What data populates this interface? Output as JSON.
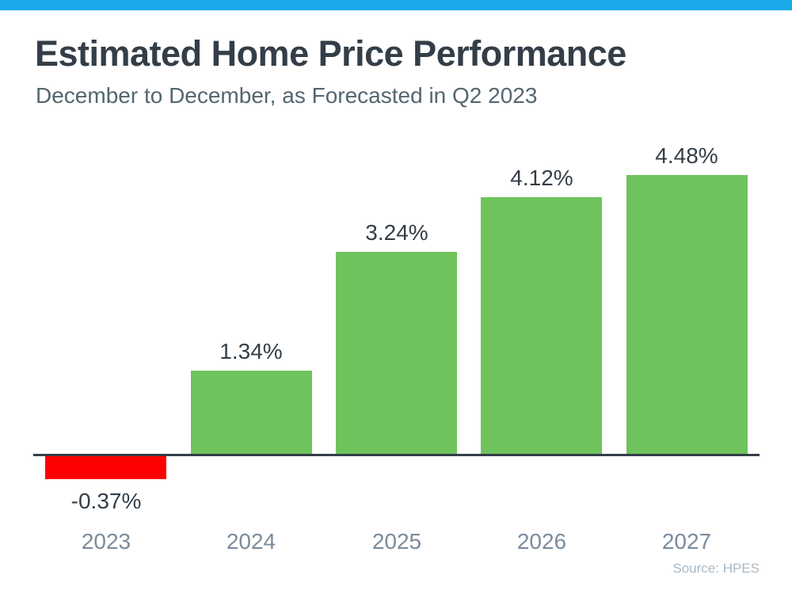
{
  "page": {
    "background_color": "#FFFFFF",
    "accent_bar_color": "#1AA9EA"
  },
  "header": {
    "title": "Estimated Home Price Performance",
    "subtitle": "December to December, as Forecasted in Q2 2023"
  },
  "chart_data": {
    "type": "bar",
    "title": "Estimated Home Price Performance",
    "subtitle": "December to December, as Forecasted in Q2 2023",
    "categories": [
      "2023",
      "2024",
      "2025",
      "2026",
      "2027"
    ],
    "values": [
      -0.37,
      1.34,
      3.24,
      4.12,
      4.48
    ],
    "value_labels": [
      "-0.37%",
      "1.34%",
      "3.24%",
      "4.12%",
      "4.48%"
    ],
    "positive_color": "#6EC35C",
    "negative_color": "#FE0000",
    "axis_color": "#333E48",
    "value_label_color": "#333E48",
    "category_label_color": "#7B8B9B",
    "ylim": [
      -0.8,
      5.0
    ],
    "xlabel": "",
    "ylabel": "",
    "grid": false,
    "legend_position": "none"
  },
  "footer": {
    "source": "Source: HPES"
  }
}
